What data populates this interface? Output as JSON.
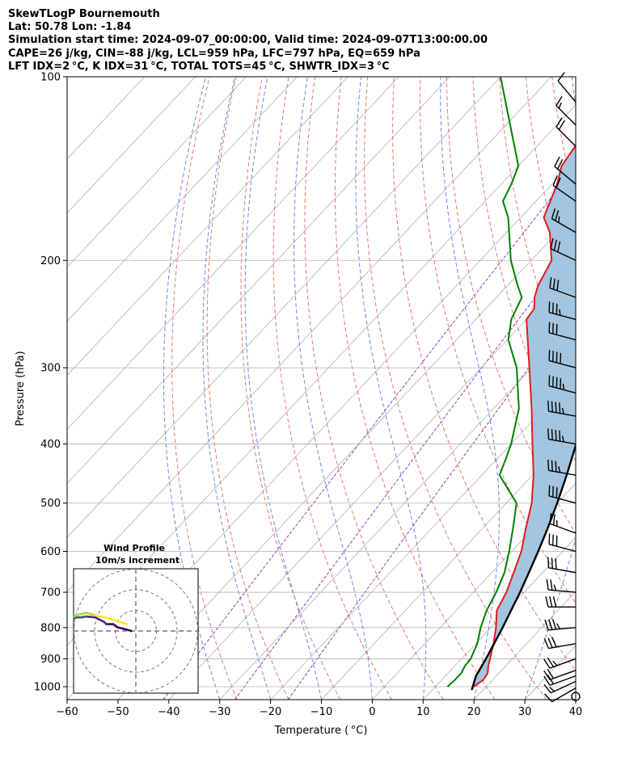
{
  "header": {
    "line1": "SkewTLogP Bournemouth",
    "line2": "Lat: 50.78   Lon: -1.84",
    "line3": "Simulation start time: 2024-09-07_00:00:00, Valid time: 2024-09-07T13:00:00.00",
    "line4": "CAPE=26 j/kg, CIN=-88 j/kg, LCL=959 hPa, LFC=797 hPa, EQ=659 hPa",
    "line5": "LFT IDX=2 °C, K IDX=31 °C, TOTAL TOTS=45 °C, SHWTR_IDX=3 °C"
  },
  "chart_data": {
    "type": "line",
    "subtype": "skew-t log-p",
    "xlabel": "Temperature ( °C)",
    "ylabel": "Pressure (hPa)",
    "xlim": [
      -60,
      40
    ],
    "ylim": [
      1050,
      100
    ],
    "y_scale": "log",
    "grid": true,
    "x_ticks": [
      -60,
      -50,
      -40,
      -30,
      -20,
      -10,
      0,
      10,
      20,
      30,
      40
    ],
    "y_ticks": [
      100,
      200,
      300,
      400,
      500,
      600,
      700,
      800,
      900,
      1000
    ],
    "series": [
      {
        "role": "temperature",
        "color": "#e41a1c",
        "points": [
          [
            1000,
            17.5
          ],
          [
            975,
            18.2
          ],
          [
            950,
            17.8
          ],
          [
            925,
            16.6
          ],
          [
            900,
            15.6
          ],
          [
            850,
            13.5
          ],
          [
            800,
            11.0
          ],
          [
            750,
            8.0
          ],
          [
            700,
            6.5
          ],
          [
            650,
            4.3
          ],
          [
            600,
            1.9
          ],
          [
            550,
            -1.5
          ],
          [
            500,
            -5.0
          ],
          [
            450,
            -9.8
          ],
          [
            400,
            -15.8
          ],
          [
            350,
            -22.5
          ],
          [
            300,
            -30.5
          ],
          [
            250,
            -40.0
          ],
          [
            240,
            -40.5
          ],
          [
            230,
            -42.5
          ],
          [
            220,
            -44.0
          ],
          [
            200,
            -46.0
          ],
          [
            180,
            -51.5
          ],
          [
            170,
            -55.5
          ],
          [
            150,
            -59.0
          ],
          [
            140,
            -61.5
          ],
          [
            120,
            -63.5
          ],
          [
            100,
            -67.0
          ]
        ]
      },
      {
        "role": "dewpoint",
        "color": "#008000",
        "points": [
          [
            1000,
            12.4
          ],
          [
            975,
            12.6
          ],
          [
            950,
            12.6
          ],
          [
            925,
            12.0
          ],
          [
            900,
            11.8
          ],
          [
            850,
            10.3
          ],
          [
            800,
            8.0
          ],
          [
            750,
            6.0
          ],
          [
            700,
            4.5
          ],
          [
            650,
            2.5
          ],
          [
            600,
            -0.5
          ],
          [
            550,
            -4.0
          ],
          [
            500,
            -8.0
          ],
          [
            470,
            -13.0
          ],
          [
            450,
            -16.5
          ],
          [
            420,
            -18.5
          ],
          [
            400,
            -20.0
          ],
          [
            350,
            -25.0
          ],
          [
            300,
            -33.0
          ],
          [
            270,
            -39.8
          ],
          [
            250,
            -43.0
          ],
          [
            230,
            -45.0
          ],
          [
            220,
            -48.0
          ],
          [
            200,
            -54.0
          ],
          [
            170,
            -62.5
          ],
          [
            160,
            -66.5
          ],
          [
            150,
            -68.0
          ],
          [
            140,
            -70.0
          ],
          [
            100,
            -90.0
          ]
        ]
      },
      {
        "role": "parcel",
        "color": "#000000",
        "points": [
          [
            1013,
            17.8
          ],
          [
            960,
            16.0
          ],
          [
            900,
            14.8
          ],
          [
            850,
            13.6
          ],
          [
            800,
            12.3
          ],
          [
            750,
            10.8
          ],
          [
            700,
            9.2
          ],
          [
            650,
            7.3
          ],
          [
            600,
            5.2
          ],
          [
            550,
            2.8
          ],
          [
            500,
            0.0
          ],
          [
            450,
            -3.3
          ],
          [
            400,
            -7.2
          ],
          [
            350,
            -12.0
          ],
          [
            300,
            -17.8
          ],
          [
            250,
            -25.5
          ],
          [
            200,
            -35.5
          ],
          [
            150,
            -49.0
          ],
          [
            100,
            -68.0
          ]
        ]
      }
    ],
    "shading": {
      "role": "CAPE",
      "color": "#a3c5df",
      "between": [
        "temperature",
        "parcel"
      ]
    },
    "reference_lines": {
      "isotherms_color": "#b0b0b0",
      "dry_adiabats_color": "#e06060",
      "moist_adiabats_color": "#5b6fe8",
      "mixing_ratio_color": "#8a46b8"
    },
    "wind_barbs": {
      "pressures": [
        1005,
        980,
        960,
        940,
        900,
        850,
        800,
        740,
        700,
        650,
        600,
        560,
        500,
        450,
        400,
        360,
        330,
        300,
        270,
        250,
        230,
        200,
        180,
        160,
        150,
        130,
        120,
        110
      ],
      "speed_kt": [
        10,
        18,
        24,
        22,
        25,
        30,
        35,
        30,
        25,
        30,
        30,
        25,
        30,
        35,
        45,
        45,
        45,
        40,
        30,
        35,
        30,
        30,
        25,
        20,
        20,
        20,
        15,
        10
      ],
      "direction_deg": [
        240,
        245,
        250,
        250,
        250,
        260,
        265,
        270,
        275,
        280,
        285,
        290,
        285,
        280,
        280,
        280,
        285,
        285,
        285,
        285,
        290,
        295,
        300,
        305,
        310,
        315,
        315,
        320
      ],
      "calm_at_bottom": true
    },
    "inset": {
      "title": "Wind Profile",
      "subtitle": "10m/s increment",
      "hodograph": [
        [
          -1,
          0
        ],
        [
          -2,
          0.3
        ],
        [
          -4,
          0.8
        ],
        [
          -5,
          1.5
        ],
        [
          -6.5,
          1.5
        ],
        [
          -7,
          2
        ],
        [
          -8,
          2.5
        ],
        [
          -9,
          3
        ],
        [
          -11,
          3.2
        ],
        [
          -12,
          3
        ],
        [
          -13,
          3
        ],
        [
          -14,
          2.8
        ],
        [
          -15,
          2.8
        ],
        [
          -16,
          3
        ],
        [
          -17,
          3.5
        ],
        [
          -18,
          4
        ],
        [
          -20,
          4
        ],
        [
          -22,
          4.2
        ],
        [
          -24,
          4.2
        ],
        [
          -24.5,
          3
        ],
        [
          -24.5,
          1
        ],
        [
          -24,
          -1.5
        ],
        [
          -23.5,
          -2.5
        ],
        [
          -23.5,
          -0.5
        ],
        [
          -22.5,
          1.5
        ],
        [
          -21.5,
          2.5
        ],
        [
          -20,
          2.5
        ],
        [
          -19,
          3
        ],
        [
          -17,
          3.5
        ],
        [
          -15,
          2.5
        ],
        [
          -13,
          3.5
        ],
        [
          -11,
          4
        ],
        [
          -9,
          3.5
        ],
        [
          -7,
          3
        ],
        [
          -5,
          2.5
        ],
        [
          -3,
          1.8
        ],
        [
          -2,
          1.5
        ]
      ]
    }
  }
}
